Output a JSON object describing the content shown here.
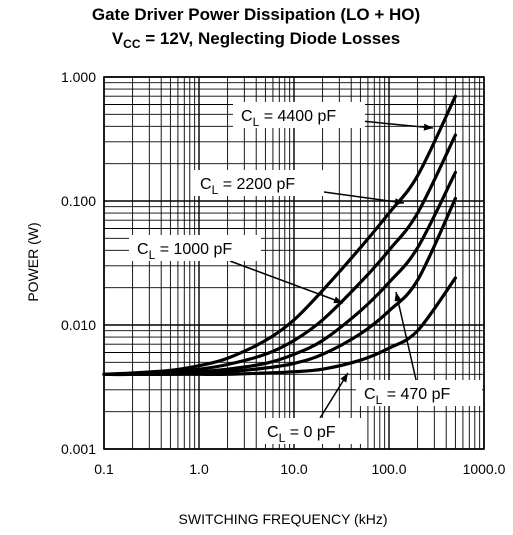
{
  "chart_data": {
    "type": "line",
    "title_line1": "Gate Driver Power Dissipation (LO + HO)",
    "title_line2": {
      "pre": "V",
      "sub": "CC",
      "post": " = 12V, Neglecting Diode Losses"
    },
    "xlabel": "SWITCHING FREQUENCY (kHz)",
    "ylabel": "POWER (W)",
    "x_scale": "log",
    "y_scale": "log",
    "xlim": [
      0.1,
      1000
    ],
    "ylim": [
      0.001,
      1
    ],
    "grid": true,
    "x_ticks": [
      {
        "value": 0.1,
        "label": "0.1"
      },
      {
        "value": 1,
        "label": "1.0"
      },
      {
        "value": 10,
        "label": "10.0"
      },
      {
        "value": 100,
        "label": "100.0"
      },
      {
        "value": 1000,
        "label": "1000.0"
      }
    ],
    "y_ticks": [
      {
        "value": 0.001,
        "label": "0.001"
      },
      {
        "value": 0.01,
        "label": "0.010"
      },
      {
        "value": 0.1,
        "label": "0.100"
      },
      {
        "value": 1,
        "label": "1.000"
      }
    ],
    "series": [
      {
        "name": "CL = 4400 pF",
        "label_pre": "C",
        "label_sub": "L",
        "label_post": " = 4400 pF",
        "x": [
          0.1,
          0.2,
          0.5,
          1,
          2,
          5,
          10,
          20,
          50,
          100,
          200,
          500
        ],
        "values": [
          0.004,
          0.0041,
          0.0043,
          0.0047,
          0.0054,
          0.0075,
          0.011,
          0.019,
          0.042,
          0.08,
          0.16,
          0.7
        ]
      },
      {
        "name": "CL = 2200 pF",
        "label_pre": "C",
        "label_sub": "L",
        "label_post": " = 2200 pF",
        "x": [
          0.1,
          0.2,
          0.5,
          1,
          2,
          5,
          10,
          20,
          50,
          100,
          200,
          500
        ],
        "values": [
          0.004,
          0.004,
          0.0042,
          0.0044,
          0.0048,
          0.0058,
          0.0075,
          0.011,
          0.022,
          0.04,
          0.08,
          0.34
        ]
      },
      {
        "name": "CL = 1000 pF",
        "label_pre": "C",
        "label_sub": "L",
        "label_post": " = 1000 pF",
        "x": [
          0.1,
          0.2,
          0.5,
          1,
          2,
          5,
          10,
          20,
          50,
          100,
          200,
          500
        ],
        "values": [
          0.004,
          0.004,
          0.0041,
          0.0042,
          0.0044,
          0.0049,
          0.0058,
          0.0075,
          0.013,
          0.022,
          0.042,
          0.17
        ]
      },
      {
        "name": "CL = 470 pF",
        "label_pre": "C",
        "label_sub": "L",
        "label_post": " = 470 pF",
        "x": [
          0.1,
          0.2,
          0.5,
          1,
          2,
          5,
          10,
          20,
          50,
          100,
          200,
          500
        ],
        "values": [
          0.004,
          0.004,
          0.004,
          0.0041,
          0.0042,
          0.0045,
          0.0049,
          0.0058,
          0.0085,
          0.013,
          0.023,
          0.105
        ]
      },
      {
        "name": "CL = 0 pF",
        "label_pre": "C",
        "label_sub": "L",
        "label_post": " = 0 pF",
        "x": [
          0.1,
          0.2,
          0.5,
          1,
          2,
          5,
          10,
          20,
          50,
          100,
          200,
          500
        ],
        "values": [
          0.004,
          0.004,
          0.004,
          0.004,
          0.004,
          0.0041,
          0.0042,
          0.0044,
          0.0052,
          0.0065,
          0.009,
          0.024
        ]
      }
    ]
  }
}
